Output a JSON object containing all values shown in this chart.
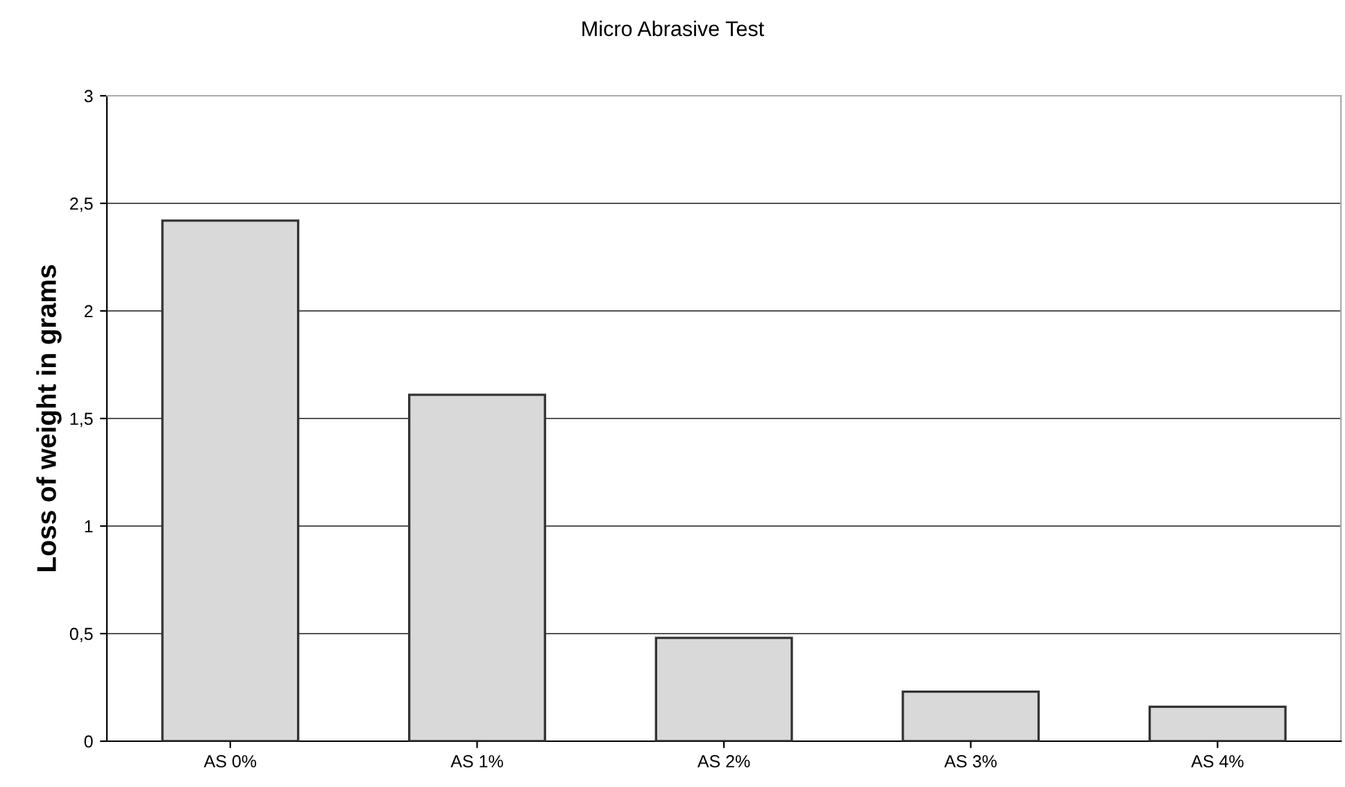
{
  "chart_data": {
    "type": "bar",
    "title": "Micro Abrasive Test",
    "ylabel": "Loss of weight in grams",
    "categories": [
      "AS 0%",
      "AS 1%",
      "AS 2%",
      "AS 3%",
      "AS 4%"
    ],
    "values": [
      2.42,
      1.61,
      0.48,
      0.23,
      0.16
    ],
    "color": "#d9d9d9",
    "ylim": [
      0,
      3
    ],
    "yticks": [
      0,
      {
        "value": 0.5,
        "label": "0,5"
      },
      1,
      {
        "value": 1.5,
        "label": "1,5"
      },
      2,
      {
        "value": 2.5,
        "label": "2,5"
      },
      3
    ],
    "grid": "y",
    "legend": false
  }
}
